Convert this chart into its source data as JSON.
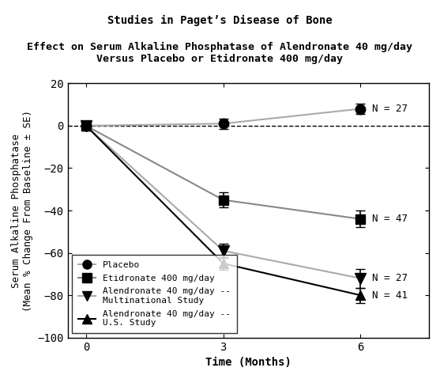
{
  "title1": "Studies in Paget’s Disease of Bone",
  "title2": "Effect on Serum Alkaline Phosphatase of Alendronate 40 mg/day\nVersus Placebo or Etidronate 400 mg/day",
  "xlabel": "Time (Months)",
  "ylabel": "Serum Alkaline Phosphatase\n(Mean % Change From Baseline ± SE)",
  "xlim": [
    -0.4,
    7.5
  ],
  "ylim": [
    -100,
    20
  ],
  "yticks": [
    -100,
    -80,
    -60,
    -40,
    -20,
    0,
    20
  ],
  "xticks": [
    0,
    3,
    6
  ],
  "series": [
    {
      "label": "Placebo",
      "x": [
        0,
        3,
        6
      ],
      "y": [
        0,
        1,
        8
      ],
      "yerr": [
        0,
        2.5,
        2.5
      ],
      "marker": "o",
      "line_color": "#aaaaaa",
      "marker_color": "#000000",
      "markersize": 9,
      "n_label": "N = 27",
      "n_x": 6.25,
      "n_y": 8
    },
    {
      "label": "Etidronate 400 mg/day",
      "x": [
        0,
        3,
        6
      ],
      "y": [
        0,
        -35,
        -44
      ],
      "yerr": [
        0,
        3.5,
        4.0
      ],
      "marker": "s",
      "line_color": "#888888",
      "marker_color": "#000000",
      "markersize": 8,
      "n_label": "N = 47",
      "n_x": 6.25,
      "n_y": -44
    },
    {
      "label": "Alendronate 40 mg/day --\nMultinational Study",
      "x": [
        0,
        3,
        6
      ],
      "y": [
        0,
        -59,
        -72
      ],
      "yerr": [
        0,
        3.5,
        4.5
      ],
      "marker": "v",
      "line_color": "#aaaaaa",
      "marker_color": "#000000",
      "markersize": 10,
      "n_label": "N = 27",
      "n_x": 6.25,
      "n_y": -72
    },
    {
      "label": "Alendronate 40 mg/day --\nU.S. Study",
      "x": [
        0,
        3,
        6
      ],
      "y": [
        0,
        -65,
        -80
      ],
      "yerr": [
        0,
        3.0,
        3.5
      ],
      "marker": "^",
      "line_color": "#000000",
      "marker_color": "#000000",
      "markersize": 9,
      "n_label": "N = 41",
      "n_x": 6.25,
      "n_y": -80
    }
  ],
  "legend_labels": [
    "Placebo",
    "Etidronate 400 mg/day",
    "Alendronate 40 mg/day --\nMultinational Study",
    "Alendronate 40 mg/day --\nU.S. Study"
  ]
}
